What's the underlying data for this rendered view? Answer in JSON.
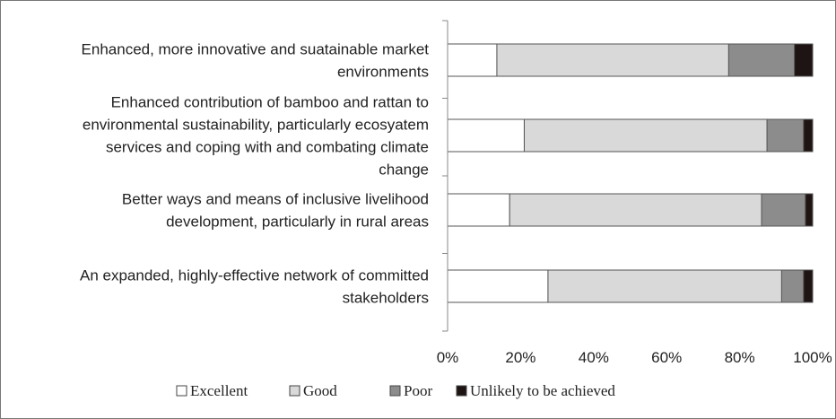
{
  "chart_data": {
    "type": "bar",
    "orientation": "horizontal",
    "stacked": true,
    "percent_stacked": true,
    "categories": [
      [
        "Enhanced, more innovative and suatainable market",
        "environments"
      ],
      [
        "Enhanced contribution of bamboo and rattan to",
        "environmental sustainability, particularly ecosyatem",
        "services and coping with and combating climate",
        "change"
      ],
      [
        "Better ways and means of inclusive livelihood",
        "development, particularly in rural areas"
      ],
      [
        "An expanded, highly-effective network of committed",
        "stakeholders"
      ]
    ],
    "series": [
      {
        "name": "Excellent",
        "values": [
          13.5,
          21,
          17,
          27.5
        ]
      },
      {
        "name": "Good",
        "values": [
          63.5,
          66.5,
          69,
          64
        ]
      },
      {
        "name": "Poor",
        "values": [
          18,
          10,
          12,
          6
        ]
      },
      {
        "name": "Unlikely to be achieved",
        "values": [
          5,
          2.5,
          2,
          2.5
        ]
      }
    ],
    "xlim": [
      0,
      100
    ],
    "x_ticks": [
      "0%",
      "20%",
      "40%",
      "60%",
      "80%",
      "100%"
    ],
    "legend": "bottom",
    "grid": false,
    "title": "",
    "xlabel": "",
    "ylabel": "",
    "colors": {
      "Excellent": "#ffffff",
      "Good": "#d9d9d9",
      "Poor": "#8c8c8c",
      "Unlikely to be achieved": "#1e1414"
    }
  }
}
